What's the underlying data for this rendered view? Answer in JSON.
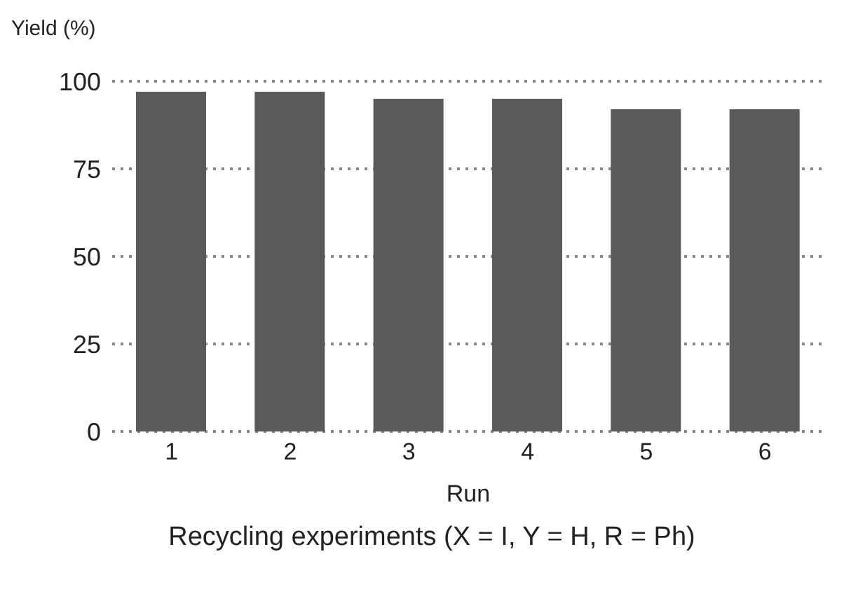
{
  "chart_data": {
    "type": "bar",
    "ylabel": "Yield (%)",
    "xlabel": "Run",
    "categories": [
      "1",
      "2",
      "3",
      "4",
      "5",
      "6"
    ],
    "values": [
      97,
      97,
      95,
      95,
      92,
      92
    ],
    "color": "#5a5a5a",
    "ylim": [
      0,
      100
    ],
    "yticks": [
      0,
      25,
      50,
      75,
      100
    ],
    "grid": "y",
    "annotations": [
      "Recycling experiments (X = I, Y = H, R = Ph)"
    ]
  }
}
